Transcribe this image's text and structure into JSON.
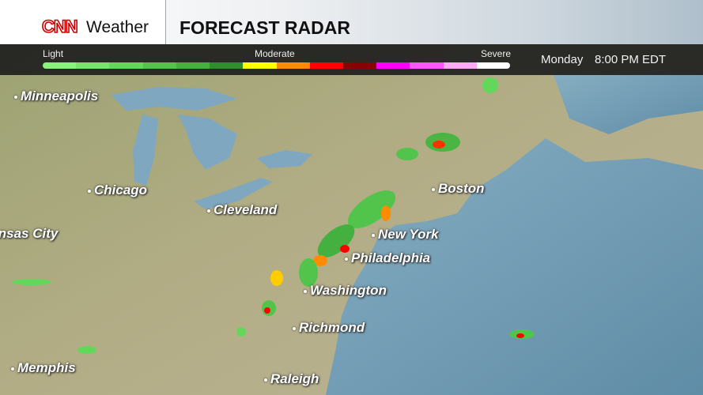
{
  "header": {
    "logo": "CNN",
    "brand": "Weather",
    "title": "FORECAST RADAR"
  },
  "legend": {
    "light": "Light",
    "moderate": "Moderate",
    "severe": "Severe",
    "colors": [
      "#8af37b",
      "#75e46a",
      "#62d85a",
      "#52c44b",
      "#44b03f",
      "#2f8f2f",
      "#ffff00",
      "#ff8c00",
      "#ff0000",
      "#8b0000",
      "#ff00ff",
      "#ff55ff",
      "#ffaaf7",
      "#ffffff"
    ]
  },
  "time": {
    "day": "Monday",
    "clock": "8:00 PM EDT"
  },
  "cities": [
    "Minneapolis",
    "Chicago",
    "Cleveland",
    "Boston",
    "New York",
    "Philadelphia",
    "Washington",
    "Richmond",
    "Memphis",
    "Raleigh",
    "Kansas City"
  ],
  "colors": {
    "land": "#a6a878",
    "ocean": "#6f9ab0",
    "lake": "#7fa7bf"
  }
}
